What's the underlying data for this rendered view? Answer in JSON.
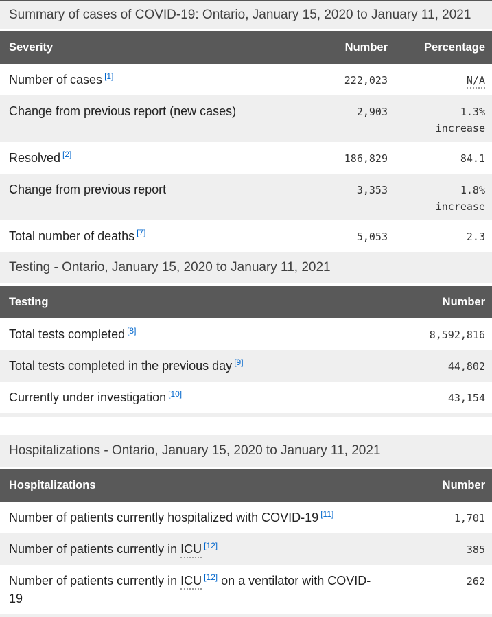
{
  "colors": {
    "header_bar_bg": "#595959",
    "header_bar_text": "#ffffff",
    "caption_band_bg": "#efefef",
    "shaded_row_bg": "#efefef",
    "footnote_link": "#0066cc",
    "body_text": "#222222",
    "top_rule": "#565656"
  },
  "tables": [
    {
      "caption": "Summary of cases of COVID-19: Ontario, January 15, 2020 to January 11, 2021",
      "columns": [
        "Severity",
        "Number",
        "Percentage"
      ],
      "rows": [
        {
          "shaded": false,
          "label_parts": [
            [
              "text",
              "Number of cases"
            ],
            [
              "sup",
              "1"
            ]
          ],
          "number": "222,023",
          "pct_parts": [
            [
              "abbr",
              "N/A"
            ]
          ]
        },
        {
          "shaded": true,
          "label_parts": [
            [
              "text",
              "Change from previous report (new cases)"
            ]
          ],
          "number": "2,903",
          "pct_parts": [
            [
              "text",
              "1.3%"
            ],
            [
              "break",
              ""
            ],
            [
              "text",
              "increase"
            ]
          ]
        },
        {
          "shaded": false,
          "label_parts": [
            [
              "text",
              "Resolved"
            ],
            [
              "sup",
              "2"
            ]
          ],
          "number": "186,829",
          "pct_parts": [
            [
              "text",
              "84.1"
            ]
          ]
        },
        {
          "shaded": true,
          "label_parts": [
            [
              "text",
              "Change from previous report"
            ]
          ],
          "number": "3,353",
          "pct_parts": [
            [
              "text",
              "1.8%"
            ],
            [
              "break",
              ""
            ],
            [
              "text",
              "increase"
            ]
          ]
        },
        {
          "shaded": false,
          "label_parts": [
            [
              "text",
              "Total number of deaths"
            ],
            [
              "sup",
              "7"
            ]
          ],
          "number": "5,053",
          "pct_parts": [
            [
              "text",
              "2.3"
            ]
          ]
        }
      ]
    },
    {
      "caption": "Testing - Ontario, January 15, 2020 to January 11, 2021",
      "columns": [
        "Testing",
        "Number"
      ],
      "rows": [
        {
          "shaded": false,
          "label_parts": [
            [
              "text",
              "Total tests completed"
            ],
            [
              "sup",
              "8"
            ]
          ],
          "number": "8,592,816"
        },
        {
          "shaded": true,
          "label_parts": [
            [
              "text",
              "Total tests completed in the previous day"
            ],
            [
              "sup",
              "9"
            ]
          ],
          "number": "44,802"
        },
        {
          "shaded": false,
          "label_parts": [
            [
              "text",
              "Currently under investigation"
            ],
            [
              "sup",
              "10"
            ]
          ],
          "number": "43,154"
        }
      ]
    },
    {
      "caption": "Hospitalizations - Ontario, January 15, 2020 to January 11, 2021",
      "columns": [
        "Hospitalizations",
        "Number"
      ],
      "rows": [
        {
          "shaded": false,
          "label_parts": [
            [
              "text",
              "Number of patients currently hospitalized with COVID-19"
            ],
            [
              "sup",
              "11"
            ]
          ],
          "number": "1,701"
        },
        {
          "shaded": true,
          "label_parts": [
            [
              "text",
              "Number of patients currently in "
            ],
            [
              "abbr",
              "ICU"
            ],
            [
              "sup",
              "12"
            ]
          ],
          "number": "385"
        },
        {
          "shaded": false,
          "label_parts": [
            [
              "text",
              "Number of patients currently in "
            ],
            [
              "abbr",
              "ICU"
            ],
            [
              "sup",
              "12"
            ],
            [
              "text",
              " on a ventilator with COVID-19"
            ]
          ],
          "number": "262"
        }
      ]
    }
  ]
}
